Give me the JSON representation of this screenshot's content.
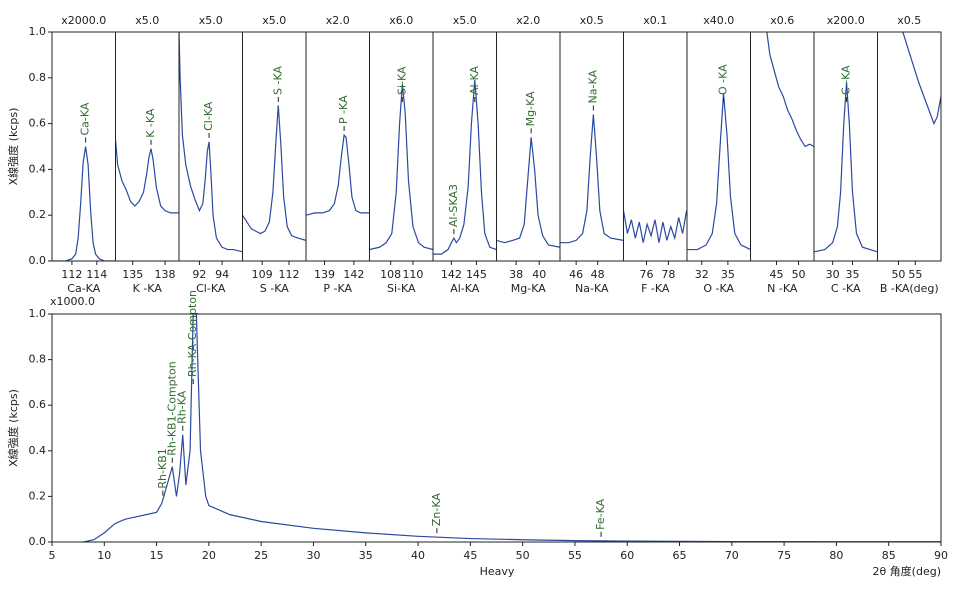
{
  "chart_data": [
    {
      "type": "line",
      "scale_label": "x2000.0",
      "element_label": "Ca-KA",
      "y_label": "X線強度 (kcps)",
      "color": "#2a4aa0",
      "annotation_color": "#2e6b2e",
      "xlim": [
        110.4,
        115.5
      ],
      "xticks": [
        112,
        114
      ],
      "ylim": [
        0,
        1
      ],
      "yticks": [
        {
          "value": 0,
          "label": "0.0"
        },
        0.2,
        0.4,
        0.6,
        0.8,
        {
          "value": 1,
          "label": "1.0"
        }
      ],
      "x": [
        110.4,
        111.5,
        112.0,
        112.3,
        112.5,
        112.7,
        112.9,
        113.1,
        113.3,
        113.5,
        113.7,
        113.9,
        114.2,
        114.6,
        115.5
      ],
      "values": [
        0,
        0,
        0.01,
        0.03,
        0.1,
        0.25,
        0.43,
        0.5,
        0.42,
        0.22,
        0.08,
        0.03,
        0.01,
        0,
        0
      ],
      "annotations": [
        {
          "label": "Ca-KA",
          "x": 113.1
        }
      ]
    },
    {
      "type": "line",
      "scale_label": "x5.0",
      "element_label": "K -KA",
      "color": "#2a4aa0",
      "annotation_color": "#2e6b2e",
      "xlim": [
        133.4,
        139.3
      ],
      "xticks": [
        135,
        138
      ],
      "ylim": [
        0,
        1
      ],
      "x": [
        133.4,
        133.6,
        134.0,
        134.4,
        134.8,
        135.2,
        135.6,
        136.0,
        136.3,
        136.5,
        136.7,
        136.9,
        137.2,
        137.6,
        138.0,
        138.5,
        139.3
      ],
      "values": [
        0.53,
        0.42,
        0.35,
        0.31,
        0.26,
        0.24,
        0.26,
        0.3,
        0.38,
        0.45,
        0.49,
        0.44,
        0.32,
        0.24,
        0.22,
        0.21,
        0.21
      ],
      "annotations": [
        {
          "label": "K -KA",
          "x": 136.7
        }
      ]
    },
    {
      "type": "line",
      "scale_label": "x5.0",
      "element_label": "Cl-KA",
      "color": "#2a4aa0",
      "annotation_color": "#2e6b2e",
      "xlim": [
        90.2,
        95.8
      ],
      "xticks": [
        92,
        94
      ],
      "ylim": [
        0,
        1
      ],
      "x": [
        90.2,
        90.3,
        90.5,
        90.8,
        91.2,
        91.6,
        92.0,
        92.3,
        92.5,
        92.7,
        92.85,
        93.0,
        93.2,
        93.5,
        94.0,
        94.5,
        95.0,
        95.8
      ],
      "values": [
        1.0,
        0.8,
        0.55,
        0.42,
        0.33,
        0.27,
        0.22,
        0.25,
        0.35,
        0.48,
        0.52,
        0.4,
        0.2,
        0.1,
        0.06,
        0.05,
        0.05,
        0.04
      ],
      "annotations": [
        {
          "label": "Cl-KA",
          "x": 92.85
        }
      ]
    },
    {
      "type": "line",
      "scale_label": "x5.0",
      "element_label": "S -KA",
      "color": "#2a4aa0",
      "annotation_color": "#2e6b2e",
      "xlim": [
        106.8,
        113.9
      ],
      "xticks": [
        109,
        112
      ],
      "ylim": [
        0,
        1
      ],
      "x": [
        106.8,
        107.3,
        107.8,
        108.3,
        108.8,
        109.3,
        109.8,
        110.2,
        110.5,
        110.8,
        111.1,
        111.4,
        111.8,
        112.3,
        113.0,
        113.9
      ],
      "values": [
        0.2,
        0.17,
        0.14,
        0.13,
        0.12,
        0.13,
        0.17,
        0.3,
        0.5,
        0.68,
        0.5,
        0.28,
        0.15,
        0.11,
        0.1,
        0.09
      ],
      "annotations": [
        {
          "label": "S -KA",
          "x": 110.8
        }
      ]
    },
    {
      "type": "line",
      "scale_label": "x2.0",
      "element_label": "P -KA",
      "color": "#2a4aa0",
      "annotation_color": "#2e6b2e",
      "xlim": [
        137.1,
        143.6
      ],
      "xticks": [
        139,
        142
      ],
      "ylim": [
        0,
        1
      ],
      "x": [
        137.1,
        138,
        138.8,
        139.5,
        140.0,
        140.4,
        140.7,
        141.0,
        141.2,
        141.5,
        141.8,
        142.2,
        142.7,
        143.6
      ],
      "values": [
        0.2,
        0.21,
        0.21,
        0.22,
        0.25,
        0.33,
        0.45,
        0.55,
        0.54,
        0.42,
        0.28,
        0.22,
        0.21,
        0.21
      ],
      "annotations": [
        {
          "label": "P -KA",
          "x": 141.0
        }
      ]
    },
    {
      "type": "line",
      "scale_label": "x6.0",
      "element_label": "Si-KA",
      "color": "#2a4aa0",
      "annotation_color": "#2e6b2e",
      "xlim": [
        106.1,
        111.8
      ],
      "xticks": [
        108,
        110
      ],
      "ylim": [
        0,
        1
      ],
      "x": [
        106.1,
        107,
        107.6,
        108.1,
        108.5,
        108.8,
        109.05,
        109.3,
        109.6,
        110.0,
        110.5,
        111,
        111.8
      ],
      "values": [
        0.05,
        0.06,
        0.08,
        0.12,
        0.3,
        0.6,
        0.77,
        0.65,
        0.35,
        0.15,
        0.08,
        0.06,
        0.05
      ],
      "annotations": [
        {
          "label": "Si-KA",
          "x": 109.05
        }
      ]
    },
    {
      "type": "line",
      "scale_label": "x5.0",
      "element_label": "Al-KA",
      "color": "#2a4aa0",
      "annotation_color": "#2e6b2e",
      "xlim": [
        139.8,
        147.4
      ],
      "xticks": [
        142,
        145
      ],
      "ylim": [
        0,
        1
      ],
      "x": [
        139.8,
        140.8,
        141.6,
        142.0,
        142.3,
        142.6,
        143.0,
        143.5,
        144.0,
        144.4,
        144.8,
        145.2,
        145.6,
        146.0,
        146.6,
        147.4
      ],
      "values": [
        0.03,
        0.03,
        0.05,
        0.08,
        0.1,
        0.08,
        0.1,
        0.16,
        0.32,
        0.6,
        0.79,
        0.6,
        0.3,
        0.12,
        0.06,
        0.05
      ],
      "annotations": [
        {
          "label": "Al-SKA3",
          "x": 142.3
        },
        {
          "label": "Al-KA",
          "x": 144.8
        }
      ]
    },
    {
      "type": "line",
      "scale_label": "x2.0",
      "element_label": "Mg-KA",
      "color": "#2a4aa0",
      "annotation_color": "#2e6b2e",
      "xlim": [
        36.3,
        41.8
      ],
      "xticks": [
        38,
        40
      ],
      "ylim": [
        0,
        1
      ],
      "x": [
        36.3,
        37,
        37.7,
        38.3,
        38.7,
        39.0,
        39.3,
        39.6,
        39.9,
        40.3,
        40.8,
        41.8
      ],
      "values": [
        0.09,
        0.08,
        0.09,
        0.1,
        0.16,
        0.35,
        0.54,
        0.4,
        0.2,
        0.11,
        0.07,
        0.06
      ],
      "annotations": [
        {
          "label": "Mg-KA",
          "x": 39.3
        }
      ]
    },
    {
      "type": "line",
      "scale_label": "x0.5",
      "element_label": "Na-KA",
      "color": "#2a4aa0",
      "annotation_color": "#2e6b2e",
      "xlim": [
        44.5,
        50.4
      ],
      "xticks": [
        46,
        48
      ],
      "ylim": [
        0,
        1
      ],
      "x": [
        44.5,
        45.3,
        46.0,
        46.6,
        47.0,
        47.3,
        47.6,
        47.9,
        48.2,
        48.6,
        49.2,
        50.4
      ],
      "values": [
        0.08,
        0.08,
        0.09,
        0.12,
        0.22,
        0.45,
        0.64,
        0.45,
        0.22,
        0.12,
        0.1,
        0.09
      ],
      "annotations": [
        {
          "label": "Na-KA",
          "x": 47.6
        }
      ]
    },
    {
      "type": "line",
      "scale_label": "x0.1",
      "element_label": "F -KA",
      "color": "#2a4aa0",
      "xlim": [
        73.9,
        79.7
      ],
      "xticks": [
        76,
        78
      ],
      "ylim": [
        0,
        1
      ],
      "x": [
        73.9,
        74.26,
        74.62,
        74.98,
        75.34,
        75.7,
        76.06,
        76.42,
        76.78,
        77.14,
        77.5,
        77.86,
        78.22,
        78.58,
        78.94,
        79.3,
        79.66
      ],
      "values": [
        0.22,
        0.12,
        0.18,
        0.1,
        0.17,
        0.08,
        0.16,
        0.11,
        0.18,
        0.08,
        0.17,
        0.09,
        0.15,
        0.1,
        0.19,
        0.12,
        0.22
      ]
    },
    {
      "type": "line",
      "scale_label": "x40.0",
      "element_label": "O -KA",
      "color": "#2a4aa0",
      "annotation_color": "#2e6b2e",
      "xlim": [
        30.3,
        37.6
      ],
      "xticks": [
        32,
        35
      ],
      "ylim": [
        0,
        1
      ],
      "x": [
        30.3,
        31.5,
        32.5,
        33.2,
        33.7,
        34.1,
        34.5,
        34.9,
        35.3,
        35.8,
        36.5,
        37.6
      ],
      "values": [
        0.05,
        0.05,
        0.07,
        0.12,
        0.25,
        0.5,
        0.73,
        0.55,
        0.28,
        0.12,
        0.07,
        0.05
      ],
      "annotations": [
        {
          "label": "O -KA",
          "x": 34.5
        }
      ]
    },
    {
      "type": "line",
      "scale_label": "x0.6",
      "element_label": "N -KA",
      "color": "#2a4aa0",
      "xlim": [
        39.1,
        53.5
      ],
      "xticks": [
        45,
        50
      ],
      "ylim": [
        0,
        1
      ],
      "x": [
        42.8,
        43.5,
        44.5,
        45.5,
        46.5,
        47.5,
        48.5,
        49.5,
        50.5,
        51.5,
        52.5,
        53.5
      ],
      "values": [
        1.0,
        0.9,
        0.83,
        0.76,
        0.72,
        0.66,
        0.62,
        0.57,
        0.53,
        0.5,
        0.51,
        0.5
      ]
    },
    {
      "type": "line",
      "scale_label": "x200.0",
      "element_label": "C -KA",
      "color": "#2a4aa0",
      "annotation_color": "#2e6b2e",
      "xlim": [
        25.3,
        41.3
      ],
      "xticks": [
        30,
        35
      ],
      "ylim": [
        0,
        1
      ],
      "x": [
        25.3,
        28,
        30,
        31.2,
        32,
        32.8,
        33.5,
        34.2,
        35,
        36,
        37.5,
        41.3
      ],
      "values": [
        0.04,
        0.05,
        0.08,
        0.15,
        0.3,
        0.6,
        0.78,
        0.6,
        0.3,
        0.12,
        0.06,
        0.04
      ],
      "annotations": [
        {
          "label": "C -KA",
          "x": 33.5
        }
      ]
    },
    {
      "type": "line",
      "scale_label": "x0.5",
      "element_label": "B -KA(deg)",
      "color": "#2a4aa0",
      "xlim": [
        43.8,
        62.6
      ],
      "xticks": [
        50,
        55
      ],
      "ylim": [
        0,
        1
      ],
      "x": [
        51.3,
        53,
        54.5,
        56,
        57.5,
        59,
        60.5,
        61.5,
        62.6
      ],
      "values": [
        1.0,
        0.92,
        0.85,
        0.78,
        0.72,
        0.66,
        0.6,
        0.63,
        0.72
      ]
    },
    {
      "type": "line",
      "scale_label": "x1000.0",
      "y_label": "X線強度 (kcps)",
      "x_label": "Heavy",
      "x_unit_label": "2θ 角度(deg)",
      "color": "#2a4aa0",
      "annotation_color": "#2e6b2e",
      "xlim": [
        5,
        90
      ],
      "xticks": [
        5,
        10,
        15,
        20,
        25,
        30,
        35,
        40,
        45,
        50,
        55,
        60,
        65,
        70,
        75,
        80,
        85,
        90
      ],
      "ylim": [
        0,
        1
      ],
      "yticks": [
        {
          "value": 0,
          "label": "0.0"
        },
        0.2,
        0.4,
        0.6,
        0.8,
        {
          "value": 1,
          "label": "1.0"
        }
      ],
      "x": [
        8,
        9,
        10,
        11,
        12,
        13,
        14,
        15,
        15.5,
        16,
        16.5,
        16.9,
        17.2,
        17.5,
        17.8,
        18.2,
        18.5,
        18.8,
        19.2,
        19.7,
        20,
        22,
        25,
        30,
        35,
        40,
        45,
        50,
        55,
        60,
        70,
        80,
        90
      ],
      "values": [
        0,
        0.01,
        0.04,
        0.08,
        0.1,
        0.11,
        0.12,
        0.13,
        0.17,
        0.25,
        0.33,
        0.2,
        0.3,
        0.47,
        0.25,
        0.4,
        1.0,
        1.0,
        0.4,
        0.2,
        0.16,
        0.12,
        0.09,
        0.06,
        0.04,
        0.025,
        0.015,
        0.01,
        0.006,
        0.004,
        0.002,
        0.001,
        0.001
      ],
      "annotations": [
        {
          "label": "Rh-KB1",
          "x": 15.6
        },
        {
          "label": "Rh-KB1-Compton",
          "x": 16.5
        },
        {
          "label": "Rh-KA",
          "x": 17.5
        },
        {
          "label": "Rh-KA-Compton",
          "x": 18.5
        },
        {
          "label": "Zn-KA",
          "x": 41.8
        },
        {
          "label": "Fe-KA",
          "x": 57.5
        }
      ]
    }
  ]
}
